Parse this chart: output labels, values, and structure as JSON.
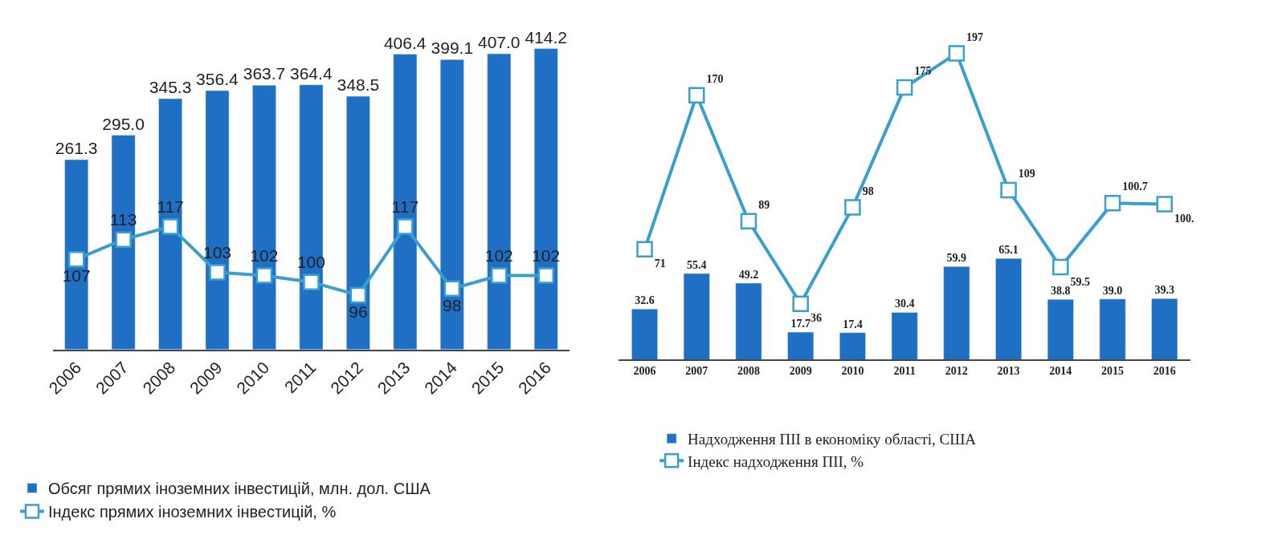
{
  "chart_data": [
    {
      "type": "bar",
      "categories": [
        "2006",
        "2007",
        "2008",
        "2009",
        "2010",
        "2011",
        "2012",
        "2013",
        "2014",
        "2015",
        "2016"
      ],
      "series": [
        {
          "name": "Обсяг прямих іноземних інвестицій, млн. дол. США",
          "color": "#1f6fc5",
          "values": [
            261.3,
            295.0,
            345.3,
            356.4,
            363.7,
            364.4,
            348.5,
            406.4,
            399.1,
            407.0,
            414.2
          ],
          "value_labels": [
            "261.3",
            "295.0",
            "345.3",
            "356.4",
            "363.7",
            "364.4",
            "348.5",
            "406.4",
            "399.1",
            "407.0",
            "414.2"
          ]
        },
        {
          "name": "Індекс прямих іноземних інвестицій, %",
          "type": "line",
          "axis": "y2",
          "color": "#3a9fcf",
          "marker": "square",
          "values": [
            107,
            113,
            117,
            103,
            102,
            100,
            96,
            117,
            98,
            102,
            102
          ]
        }
      ],
      "tick_labels": "x",
      "data_labels": true,
      "legend": "bottom left"
    },
    {
      "type": "bar",
      "categories": [
        "2006",
        "2007",
        "2008",
        "2009",
        "2010",
        "2011",
        "2012",
        "2013",
        "2014",
        "2015",
        "2016"
      ],
      "series": [
        {
          "name": "Надходження ПІІ в економіку області, США",
          "color": "#1f6fc5",
          "values": [
            32.6,
            55.4,
            49.2,
            17.7,
            17.4,
            30.4,
            59.9,
            65.1,
            38.8,
            39.0,
            39.3
          ],
          "value_labels": [
            "32.6",
            "55.4",
            "49.2",
            "17.7",
            "17.4",
            "30.4",
            "59.9",
            "65.1",
            "38.8",
            "39.0",
            "39.3"
          ]
        },
        {
          "name": "Індекс надходження ПІІ, %",
          "type": "line",
          "color": "#3a9fcf",
          "marker": "square",
          "values": [
            71,
            170,
            89,
            36,
            98,
            175,
            197,
            109,
            59.5,
            100.7,
            100.0
          ],
          "value_labels": [
            "71",
            "170",
            "89",
            "36",
            "98",
            "175",
            "197",
            "109",
            "59.5",
            "100.7",
            "100."
          ]
        }
      ],
      "tick_labels": "x",
      "legend": "bottom"
    }
  ]
}
